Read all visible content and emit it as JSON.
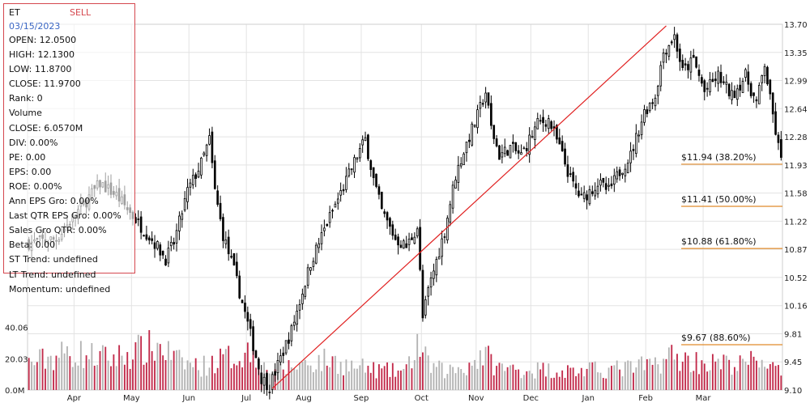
{
  "panel": {
    "symbol": "ET",
    "signal": "SELL",
    "date": "03/15/2023",
    "rows": [
      "OPEN: 12.0500",
      "HIGH: 12.1300",
      "LOW: 11.8700",
      "CLOSE: 11.9700",
      "Rank: 0",
      "Volume",
      "CLOSE: 6.0570M",
      "DIV: 0.00%",
      "PE: 0.00",
      "EPS: 0.00",
      "ROE: 0.00%",
      "Ann EPS Gro: 0.00%",
      "Last QTR EPS Gro: 0.00%",
      "Sales Gro QTR: 0.00%",
      "Beta: 0.00",
      "ST Trend: undefined",
      "LT Trend: undefined",
      "Momentum: undefined"
    ]
  },
  "colors": {
    "up_candle": "#ffffff",
    "down_candle": "#000000",
    "volume_up": "#c22a4a",
    "volume_down": "#b3b3b3",
    "trend_line": "#e02020",
    "fib_line": "#e08a2a",
    "panel_border": "#d5474e",
    "grid": "#e3e3e3"
  },
  "chart_data": {
    "type": "candlestick",
    "y_ticks": [
      "13.70",
      "13.35",
      "12.99",
      "12.64",
      "12.28",
      "11.93",
      "11.58",
      "11.22",
      "10.87",
      "10.52",
      "10.16",
      "9.81",
      "9.45",
      "9.10"
    ],
    "ylim": [
      9.1,
      13.7
    ],
    "volume_ticks": [
      "40.06",
      "20.03",
      "0.0M"
    ],
    "volume_ylim": [
      0,
      60
    ],
    "x_ticks": [
      "Apr",
      "May",
      "Jun",
      "Jul",
      "Aug",
      "Sep",
      "Oct",
      "Nov",
      "Dec",
      "Jan",
      "Feb",
      "Mar"
    ],
    "price_path": [
      [
        0,
        10.95
      ],
      [
        10,
        11.0
      ],
      [
        18,
        11.35
      ],
      [
        26,
        11.7
      ],
      [
        32,
        11.55
      ],
      [
        40,
        11.2
      ],
      [
        46,
        10.95
      ],
      [
        50,
        10.75
      ],
      [
        53,
        10.95
      ],
      [
        58,
        11.6
      ],
      [
        63,
        11.95
      ],
      [
        66,
        12.25
      ],
      [
        68,
        11.6
      ],
      [
        71,
        11.05
      ],
      [
        75,
        10.6
      ],
      [
        81,
        9.8
      ],
      [
        85,
        9.25
      ],
      [
        88,
        9.15
      ],
      [
        96,
        9.85
      ],
      [
        103,
        10.7
      ],
      [
        109,
        11.2
      ],
      [
        115,
        11.65
      ],
      [
        120,
        12.05
      ],
      [
        123,
        12.25
      ],
      [
        126,
        11.75
      ],
      [
        129,
        11.35
      ],
      [
        134,
        11.0
      ],
      [
        138,
        10.9
      ],
      [
        142,
        11.15
      ],
      [
        144,
        10.0
      ],
      [
        146,
        10.35
      ],
      [
        152,
        11.1
      ],
      [
        156,
        11.8
      ],
      [
        160,
        12.2
      ],
      [
        164,
        12.55
      ],
      [
        167,
        12.85
      ],
      [
        169,
        12.4
      ],
      [
        172,
        12.05
      ],
      [
        176,
        12.15
      ],
      [
        180,
        12.05
      ],
      [
        186,
        12.45
      ],
      [
        190,
        12.5
      ],
      [
        194,
        12.15
      ],
      [
        198,
        11.75
      ],
      [
        202,
        11.5
      ],
      [
        208,
        11.7
      ],
      [
        212,
        11.6
      ],
      [
        216,
        11.85
      ],
      [
        220,
        12.05
      ],
      [
        225,
        12.6
      ],
      [
        229,
        12.8
      ],
      [
        232,
        13.35
      ],
      [
        236,
        13.55
      ],
      [
        239,
        13.1
      ],
      [
        243,
        13.25
      ],
      [
        247,
        12.85
      ],
      [
        252,
        13.05
      ],
      [
        257,
        12.8
      ],
      [
        262,
        13.05
      ],
      [
        266,
        12.7
      ],
      [
        269,
        13.2
      ],
      [
        271,
        12.75
      ],
      [
        273,
        12.35
      ],
      [
        275,
        11.97
      ]
    ],
    "volume_path": [
      [
        0,
        17
      ],
      [
        15,
        24
      ],
      [
        30,
        20
      ],
      [
        40,
        25
      ],
      [
        48,
        28
      ],
      [
        55,
        18
      ],
      [
        63,
        15
      ],
      [
        71,
        20
      ],
      [
        77,
        22
      ],
      [
        82,
        26
      ],
      [
        86,
        14
      ],
      [
        92,
        13
      ],
      [
        100,
        17
      ],
      [
        110,
        19
      ],
      [
        118,
        15
      ],
      [
        126,
        13
      ],
      [
        132,
        12
      ],
      [
        138,
        12
      ],
      [
        142,
        30
      ],
      [
        146,
        16
      ],
      [
        152,
        12
      ],
      [
        160,
        15
      ],
      [
        166,
        23
      ],
      [
        172,
        14
      ],
      [
        180,
        13
      ],
      [
        190,
        13
      ],
      [
        200,
        12
      ],
      [
        210,
        13
      ],
      [
        220,
        14
      ],
      [
        228,
        16
      ],
      [
        234,
        22
      ],
      [
        240,
        19
      ],
      [
        250,
        17
      ],
      [
        260,
        16
      ],
      [
        268,
        20
      ],
      [
        275,
        10
      ]
    ],
    "trend_line": {
      "start": [
        89,
        9.12
      ],
      "end": [
        233,
        13.68
      ]
    },
    "fib_levels": [
      {
        "label": "$11.94 (38.20%)",
        "value": 11.94,
        "start": 239
      },
      {
        "label": "$11.41 (50.00%)",
        "value": 11.41,
        "start": 239
      },
      {
        "label": "$10.88 (61.80%)",
        "value": 10.88,
        "start": 239
      },
      {
        "label": "$9.67 (88.60%)",
        "value": 9.67,
        "start": 239
      }
    ]
  }
}
